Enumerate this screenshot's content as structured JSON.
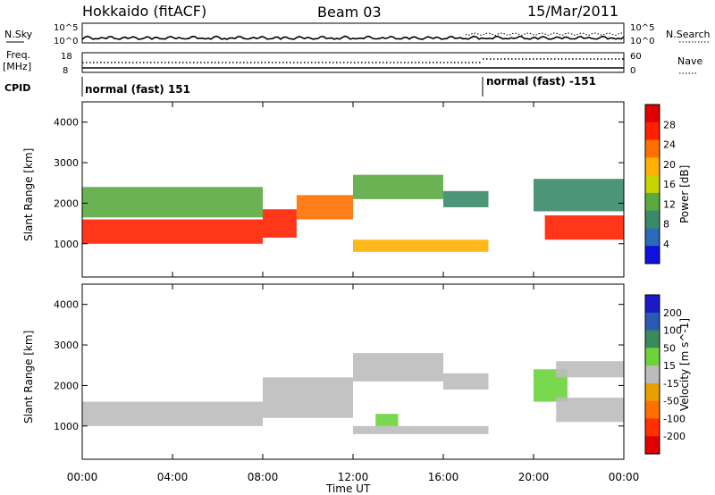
{
  "header": {
    "station": "Hokkaido (fitACF)",
    "beam": "Beam 03",
    "date": "15/Mar/2011"
  },
  "noise_panel": {
    "left_label": "N.Sky",
    "right_label": "N.Search",
    "left_ticks": [
      "10^5",
      "10^0"
    ],
    "right_ticks": [
      "10^5",
      "10^0"
    ]
  },
  "freq_panel": {
    "left_label_1": "Freq.",
    "left_label_2": "[MHz]",
    "right_label": "Nave",
    "left_ticks": [
      "18",
      "8"
    ],
    "right_ticks": [
      "60",
      "0"
    ]
  },
  "cpid": {
    "label": "CPID",
    "segments": [
      {
        "text": "normal (fast) 151",
        "start_hour": 0
      },
      {
        "text": "normal (fast) -151",
        "start_hour": 18
      }
    ]
  },
  "colors": {
    "power": [
      "#1010e0",
      "#2a6ab8",
      "#3a8a6a",
      "#5aaa40",
      "#c8d400",
      "#ffb000",
      "#ff7000",
      "#ff2000",
      "#e00000"
    ],
    "velocity": [
      "#1a1ac8",
      "#2a5ab4",
      "#3a8a5a",
      "#6ad43a",
      "#bcbcbc",
      "#e8a000",
      "#ff7000",
      "#ff3000",
      "#e00000"
    ]
  },
  "chart_data": [
    {
      "type": "heatmap",
      "name": "Power",
      "ylabel": "Slant Range [km]",
      "xlabel": "Time UT",
      "x_ticks": [
        "00:00",
        "04:00",
        "08:00",
        "12:00",
        "16:00",
        "20:00",
        "00:00"
      ],
      "y_ticks": [
        "1000",
        "2000",
        "3000",
        "4000"
      ],
      "xlim_hours": [
        0,
        24
      ],
      "ylim": [
        180,
        4500
      ],
      "colorbar": {
        "label": "Power [dB]",
        "ticks": [
          "28",
          "24",
          "20",
          "16",
          "12",
          "8",
          "4"
        ],
        "range": [
          0,
          32
        ]
      },
      "regions": [
        {
          "t0": 0,
          "t1": 8,
          "r0": 1000,
          "r1": 1600,
          "value": 26
        },
        {
          "t0": 8,
          "t1": 9.5,
          "r0": 1150,
          "r1": 1850,
          "value": 27
        },
        {
          "t0": 9.5,
          "t1": 12,
          "r0": 1600,
          "r1": 2200,
          "value": 22
        },
        {
          "t0": 12,
          "t1": 16,
          "r0": 2100,
          "r1": 2700,
          "value": 14
        },
        {
          "t0": 16,
          "t1": 18,
          "r0": 1900,
          "r1": 2300,
          "value": 10
        },
        {
          "t0": 12,
          "t1": 18,
          "r0": 800,
          "r1": 1100,
          "value": 20
        },
        {
          "t0": 0,
          "t1": 8,
          "r0": 1650,
          "r1": 2400,
          "value": 11
        },
        {
          "t0": 20.5,
          "t1": 24,
          "r0": 1100,
          "r1": 1700,
          "value": 25
        },
        {
          "t0": 20,
          "t1": 24,
          "r0": 1800,
          "r1": 2600,
          "value": 8
        }
      ]
    },
    {
      "type": "heatmap",
      "name": "Velocity",
      "ylabel": "Slant Range [km]",
      "xlabel": "Time UT",
      "x_ticks": [
        "00:00",
        "04:00",
        "08:00",
        "12:00",
        "16:00",
        "20:00",
        "00:00"
      ],
      "y_ticks": [
        "1000",
        "2000",
        "3000",
        "4000"
      ],
      "xlim_hours": [
        0,
        24
      ],
      "ylim": [
        180,
        4500
      ],
      "colorbar": {
        "label": "Velocity [m s^-1]",
        "ticks": [
          "200",
          "100",
          "50",
          "15",
          "-15",
          "-50",
          "-100",
          "-200"
        ],
        "range": [
          -250,
          250
        ]
      },
      "regions": [
        {
          "t0": 0,
          "t1": 8,
          "r0": 1000,
          "r1": 1600,
          "value": 0
        },
        {
          "t0": 8,
          "t1": 12,
          "r0": 1200,
          "r1": 2200,
          "value": 0
        },
        {
          "t0": 12,
          "t1": 16,
          "r0": 2100,
          "r1": 2800,
          "value": 0
        },
        {
          "t0": 16,
          "t1": 18,
          "r0": 1900,
          "r1": 2300,
          "value": 0
        },
        {
          "t0": 12,
          "t1": 18,
          "r0": 800,
          "r1": 1000,
          "value": 0
        },
        {
          "t0": 13,
          "t1": 14,
          "r0": 1000,
          "r1": 1300,
          "value": 40
        },
        {
          "t0": 20,
          "t1": 21.5,
          "r0": 1600,
          "r1": 2400,
          "value": 40
        },
        {
          "t0": 21,
          "t1": 24,
          "r0": 1100,
          "r1": 1700,
          "value": 0
        },
        {
          "t0": 21,
          "t1": 24,
          "r0": 2200,
          "r1": 2600,
          "value": 0
        }
      ]
    }
  ]
}
